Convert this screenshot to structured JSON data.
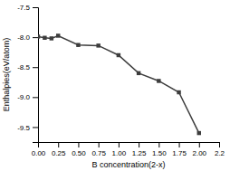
{
  "chart_data": {
    "type": "line",
    "x": [
      0.0,
      0.083,
      0.167,
      0.25,
      0.5,
      0.75,
      1.0,
      1.25,
      1.5,
      1.75,
      2.0
    ],
    "values": [
      -7.99,
      -8.01,
      -8.02,
      -7.975,
      -8.13,
      -8.14,
      -8.3,
      -8.6,
      -8.73,
      -8.92,
      -9.6
    ],
    "xlabel": "B concentration(2-x)",
    "ylabel": "Enthalpies(eV/atom)",
    "xlim": [
      0.0,
      2.25
    ],
    "ylim": [
      -9.75,
      -7.5
    ],
    "xticks": [
      {
        "value": 0.0,
        "label": "0.00"
      },
      0.25,
      {
        "value": 0.5,
        "label": "0.50"
      },
      0.75,
      {
        "value": 1.0,
        "label": "1.00"
      },
      1.25,
      {
        "value": 1.5,
        "label": "1.50"
      },
      1.75,
      {
        "value": 2.0,
        "label": "2.00"
      },
      {
        "value": 2.25,
        "label": "2.2"
      }
    ],
    "yticks": [
      -7.5,
      {
        "value": -8.0,
        "label": "-8.0"
      },
      -8.5,
      {
        "value": -9.0,
        "label": "-9.0"
      },
      -9.5
    ],
    "color": "#3d3d3d",
    "marker": "square",
    "grid": false
  }
}
